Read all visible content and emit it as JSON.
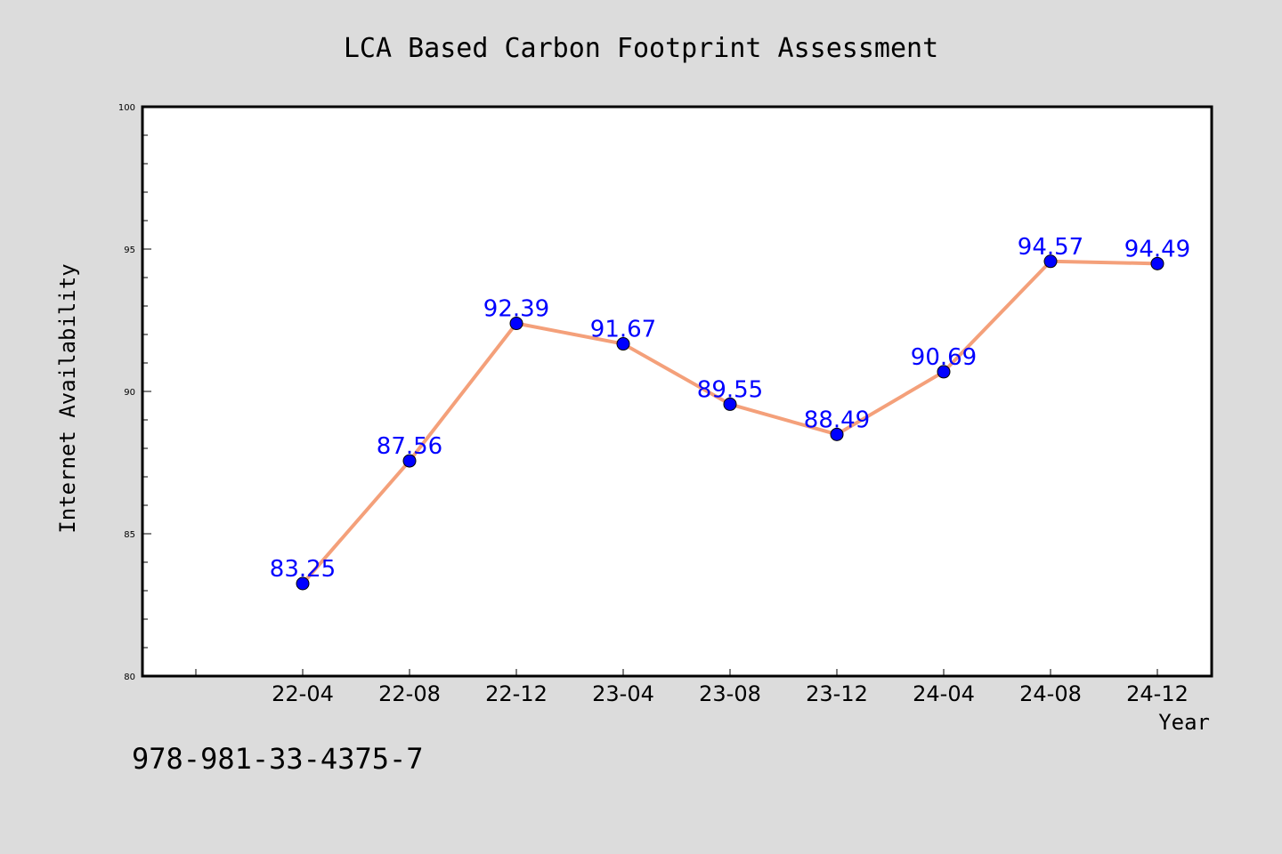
{
  "chart_data": {
    "type": "line",
    "title": "LCA Based Carbon Footprint Assessment",
    "xlabel": "Year",
    "ylabel": "Internet Availability",
    "categories": [
      "22-04",
      "22-08",
      "22-12",
      "23-04",
      "23-08",
      "23-12",
      "24-04",
      "24-08",
      "24-12"
    ],
    "series": [
      {
        "values": [
          83.25,
          87.56,
          92.39,
          91.67,
          89.55,
          88.49,
          90.69,
          94.57,
          94.49
        ],
        "labels": [
          "83.25",
          "87.56",
          "92.39",
          "91.67",
          "89.55",
          "88.49",
          "90.69",
          "94.57",
          "94.49"
        ]
      }
    ],
    "ylim": [
      80,
      100
    ],
    "yticks": [
      "80",
      "85",
      "90",
      "95",
      "100"
    ],
    "grid": false,
    "colors": {
      "line": "#f4a07a",
      "marker": "#0000ff",
      "label": "#0000ff",
      "background": "#dcdcdc",
      "plot_background": "#ffffff"
    }
  },
  "footer_text": "978-981-33-4375-7"
}
